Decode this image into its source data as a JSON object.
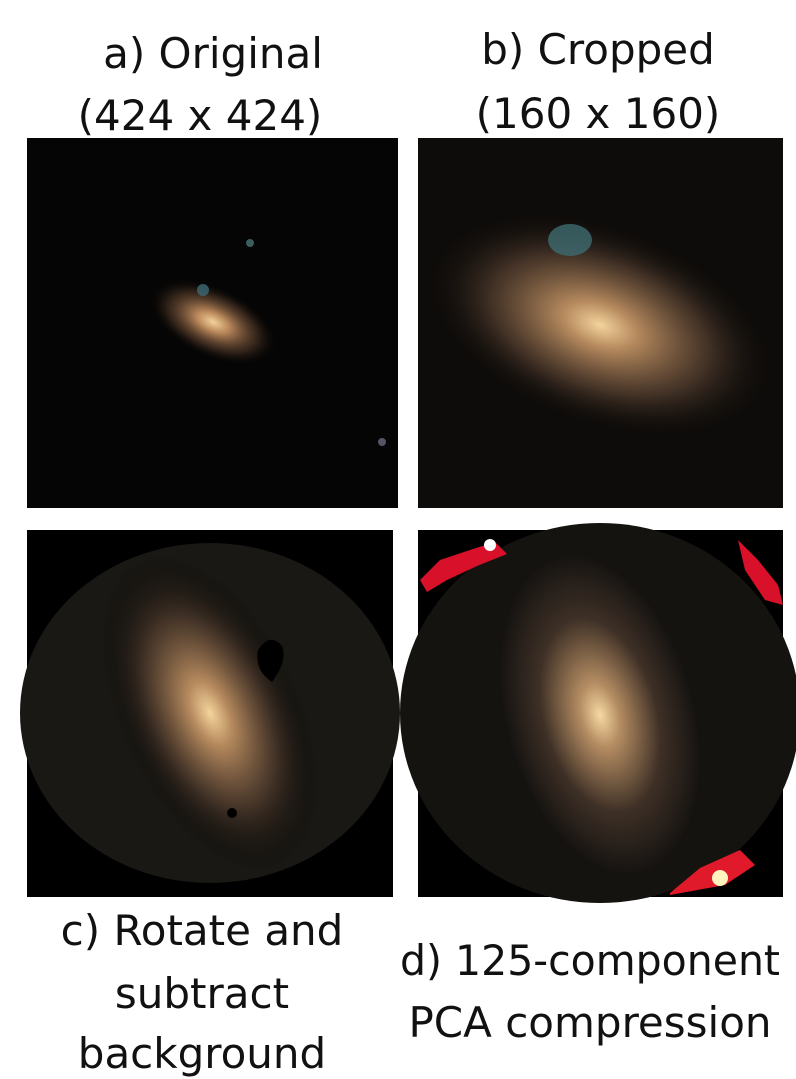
{
  "panels": [
    {
      "caption": [
        "a) Original",
        "(424 x 424)"
      ]
    },
    {
      "caption": [
        "b) Cropped",
        "(160 x 160)"
      ]
    },
    {
      "caption": [
        "c) Rotate and",
        "subtract",
        "background"
      ]
    },
    {
      "caption": [
        "d) 125-component",
        "PCA compression"
      ]
    }
  ]
}
